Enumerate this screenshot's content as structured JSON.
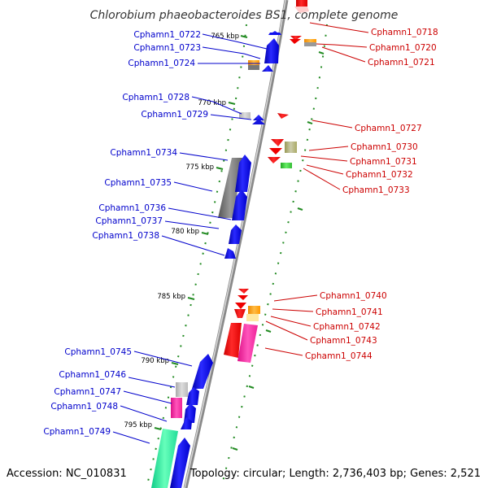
{
  "title": "Chlorobium phaeobacteroides BS1, complete genome",
  "accession": "Accession: NC_010831",
  "topology": "Topology: circular; Length: 2,736,403 bp; Genes: 2,521",
  "ticks": [
    {
      "label": "765 kbp",
      "pos": 765
    },
    {
      "label": "770 kbp",
      "pos": 770
    },
    {
      "label": "775 kbp",
      "pos": 775
    },
    {
      "label": "780 kbp",
      "pos": 780
    },
    {
      "label": "785 kbp",
      "pos": 785
    },
    {
      "label": "790 kbp",
      "pos": 790
    },
    {
      "label": "795 kbp",
      "pos": 795
    }
  ],
  "genes_left": [
    {
      "name": "Cphamn1_0722"
    },
    {
      "name": "Cphamn1_0723"
    },
    {
      "name": "Cphamn1_0724"
    },
    {
      "name": "Cphamn1_0728"
    },
    {
      "name": "Cphamn1_0729"
    },
    {
      "name": "Cphamn1_0734"
    },
    {
      "name": "Cphamn1_0735"
    },
    {
      "name": "Cphamn1_0736"
    },
    {
      "name": "Cphamn1_0737"
    },
    {
      "name": "Cphamn1_0738"
    },
    {
      "name": "Cphamn1_0745"
    },
    {
      "name": "Cphamn1_0746"
    },
    {
      "name": "Cphamn1_0747"
    },
    {
      "name": "Cphamn1_0748"
    },
    {
      "name": "Cphamn1_0749"
    }
  ],
  "genes_right": [
    {
      "name": "Cphamn1_0718"
    },
    {
      "name": "Cphamn1_0720"
    },
    {
      "name": "Cphamn1_0721"
    },
    {
      "name": "Cphamn1_0727"
    },
    {
      "name": "Cphamn1_0730"
    },
    {
      "name": "Cphamn1_0731"
    },
    {
      "name": "Cphamn1_0732"
    },
    {
      "name": "Cphamn1_0733"
    },
    {
      "name": "Cphamn1_0740"
    },
    {
      "name": "Cphamn1_0741"
    },
    {
      "name": "Cphamn1_0742"
    },
    {
      "name": "Cphamn1_0743"
    },
    {
      "name": "Cphamn1_0744"
    }
  ],
  "colors": {
    "left_label": "#0000cc",
    "right_label": "#cc0000",
    "forward_gene": "#0000ee",
    "reverse_gene": "#ee0000",
    "backbone": "#888888",
    "tick_dots": "#228b22"
  }
}
